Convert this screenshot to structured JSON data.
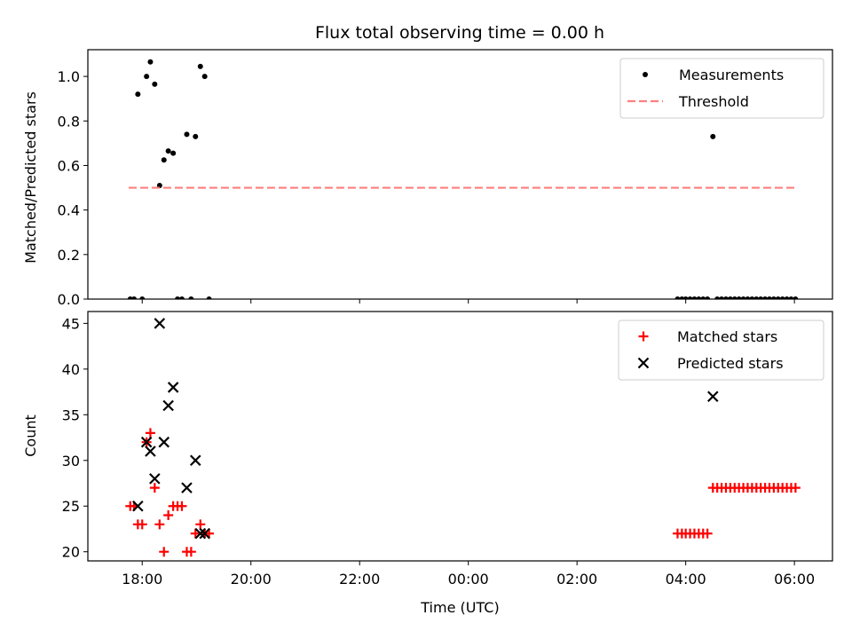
{
  "figure_title": "Flux total observing time = 0.00 h",
  "colors": {
    "measurement": "#000000",
    "threshold": "#ff7f7f",
    "matched": "#ff0000",
    "predicted": "#000000"
  },
  "chart_data": [
    {
      "type": "scatter",
      "title": "Flux total observing time = 0.00 h",
      "xlabel": "",
      "ylabel": "Matched/Predicted stars",
      "xlim": [
        17.0,
        30.7
      ],
      "ylim": [
        0.0,
        1.12
      ],
      "xticks": [
        18,
        20,
        22,
        24,
        26,
        28,
        30
      ],
      "xtick_labels": [
        "",
        "",
        "",
        "",
        "",
        "",
        ""
      ],
      "yticks": [
        0.0,
        0.2,
        0.4,
        0.6,
        0.8,
        1.0
      ],
      "ytick_labels": [
        "0.0",
        "0.2",
        "0.4",
        "0.6",
        "0.8",
        "1.0"
      ],
      "legend_position": "top-right",
      "series": [
        {
          "name": "Measurements",
          "kind": "points",
          "x": [
            17.78,
            17.85,
            17.92,
            18.0,
            18.08,
            18.15,
            18.23,
            18.32,
            18.4,
            18.48,
            18.57,
            18.65,
            18.73,
            18.82,
            18.9,
            18.98,
            19.07,
            19.15,
            19.23,
            27.85,
            27.93,
            28.0,
            28.08,
            28.16,
            28.24,
            28.32,
            28.4,
            28.5,
            28.58,
            28.66,
            28.74,
            28.82,
            28.9,
            28.98,
            29.06,
            29.14,
            29.22,
            29.3,
            29.38,
            29.46,
            29.54,
            29.62,
            29.7,
            29.78,
            29.86,
            29.94,
            30.02
          ],
          "y": [
            0.0,
            0.0,
            0.92,
            0.0,
            1.0,
            1.065,
            0.965,
            0.51,
            0.625,
            0.665,
            0.655,
            0.0,
            0.0,
            0.74,
            0.0,
            0.73,
            1.045,
            1.0,
            0.0,
            0.0,
            0.0,
            0.0,
            0.0,
            0.0,
            0.0,
            0.0,
            0.0,
            0.73,
            0.0,
            0.0,
            0.0,
            0.0,
            0.0,
            0.0,
            0.0,
            0.0,
            0.0,
            0.0,
            0.0,
            0.0,
            0.0,
            0.0,
            0.0,
            0.0,
            0.0,
            0.0,
            0.0
          ]
        },
        {
          "name": "Threshold",
          "kind": "dashed-line",
          "x": [
            17.75,
            30.0
          ],
          "y": [
            0.5,
            0.5
          ]
        }
      ]
    },
    {
      "type": "scatter",
      "title": "",
      "xlabel": "Time (UTC)",
      "ylabel": "Count",
      "xlim": [
        17.0,
        30.7
      ],
      "ylim": [
        19.0,
        46.3
      ],
      "xticks": [
        18,
        20,
        22,
        24,
        26,
        28,
        30
      ],
      "xtick_labels": [
        "18:00",
        "20:00",
        "22:00",
        "00:00",
        "02:00",
        "04:00",
        "06:00"
      ],
      "yticks": [
        20,
        25,
        30,
        35,
        40,
        45
      ],
      "ytick_labels": [
        "20",
        "25",
        "30",
        "35",
        "40",
        "45"
      ],
      "legend_position": "top-right",
      "series": [
        {
          "name": "Matched stars",
          "kind": "plus",
          "x": [
            17.78,
            17.85,
            17.92,
            18.0,
            18.08,
            18.15,
            18.23,
            18.32,
            18.4,
            18.48,
            18.57,
            18.65,
            18.73,
            18.82,
            18.9,
            18.98,
            19.07,
            19.15,
            19.23,
            27.85,
            27.93,
            28.0,
            28.08,
            28.16,
            28.24,
            28.32,
            28.4,
            28.5,
            28.58,
            28.66,
            28.74,
            28.82,
            28.9,
            28.98,
            29.06,
            29.14,
            29.22,
            29.3,
            29.38,
            29.46,
            29.54,
            29.62,
            29.7,
            29.78,
            29.86,
            29.94,
            30.02
          ],
          "y": [
            25,
            25,
            23,
            23,
            32,
            33,
            27,
            23,
            20,
            24,
            25,
            25,
            25,
            20,
            20,
            22,
            23,
            22,
            22,
            22,
            22,
            22,
            22,
            22,
            22,
            22,
            22,
            27,
            27,
            27,
            27,
            27,
            27,
            27,
            27,
            27,
            27,
            27,
            27,
            27,
            27,
            27,
            27,
            27,
            27,
            27,
            27
          ]
        },
        {
          "name": "Predicted stars",
          "kind": "x",
          "x": [
            17.92,
            18.08,
            18.15,
            18.23,
            18.32,
            18.4,
            18.48,
            18.57,
            18.82,
            18.98,
            19.07,
            19.15,
            28.5
          ],
          "y": [
            25,
            32,
            31,
            28,
            45,
            32,
            36,
            38,
            27,
            30,
            22,
            22,
            37
          ]
        }
      ]
    }
  ]
}
